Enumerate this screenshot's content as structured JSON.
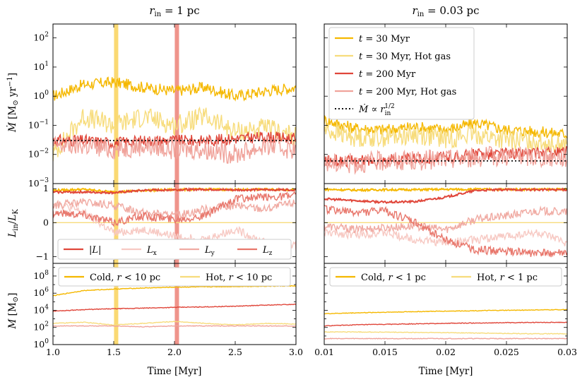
{
  "colors": {
    "cold_30": "#f5b800",
    "hot_30": "#f7dc7c",
    "cold_200": "#e0463a",
    "hot_200": "#f0a39b",
    "Lx": "#f7c9c3",
    "Ly": "#f0aaa2",
    "Lz": "#e8776c",
    "mdot_ref": "#111111",
    "vline_30": "#f9d25a",
    "vline_200": "#ec8177"
  },
  "chart_data": [
    {
      "panel": "top-left",
      "type": "line",
      "title": "r_in = 1 pc",
      "ylabel": "Ṁ [M⊙ yr⁻¹]",
      "yscale": "log",
      "xlim": [
        1.0,
        3.0
      ],
      "ylim": [
        0.001,
        300
      ],
      "x": [
        1.0,
        1.25,
        1.5,
        1.75,
        2.0,
        2.25,
        2.5,
        2.75,
        3.0
      ],
      "series": [
        {
          "name": "t = 30 Myr",
          "values": [
            1.0,
            2.5,
            3.0,
            2.0,
            1.5,
            2.0,
            1.0,
            1.5,
            2.0
          ]
        },
        {
          "name": "t = 30 Myr, Hot gas",
          "values": [
            0.01,
            0.2,
            0.1,
            0.2,
            0.1,
            0.2,
            0.06,
            0.08,
            0.04
          ]
        },
        {
          "name": "t = 200 Myr",
          "values": [
            0.03,
            0.03,
            0.025,
            0.03,
            0.03,
            0.03,
            0.035,
            0.04,
            0.035
          ]
        },
        {
          "name": "t = 200 Myr, Hot gas",
          "values": [
            0.02,
            0.02,
            0.015,
            0.02,
            0.015,
            0.015,
            0.01,
            0.02,
            0.015
          ]
        },
        {
          "name": "Ṁ ∝ r_in^(1/2)",
          "values": [
            0.03,
            0.03,
            0.03,
            0.03,
            0.03,
            0.03,
            0.03,
            0.03,
            0.03
          ]
        }
      ],
      "vlines": [
        1.52,
        2.02
      ]
    },
    {
      "panel": "top-right",
      "type": "line",
      "title": "r_in = 0.03 pc",
      "yscale": "log",
      "xlim": [
        0.01,
        0.03
      ],
      "ylim": [
        0.001,
        300
      ],
      "x": [
        0.01,
        0.0125,
        0.015,
        0.0175,
        0.02,
        0.0225,
        0.025,
        0.0275,
        0.03
      ],
      "series": [
        {
          "name": "t = 30 Myr",
          "values": [
            0.15,
            0.08,
            0.07,
            0.09,
            0.07,
            0.12,
            0.07,
            0.06,
            0.05
          ]
        },
        {
          "name": "t = 30 Myr, Hot gas",
          "values": [
            0.07,
            0.04,
            0.04,
            0.05,
            0.035,
            0.05,
            0.03,
            0.03,
            0.02
          ]
        },
        {
          "name": "t = 200 Myr",
          "values": [
            0.006,
            0.006,
            0.0065,
            0.007,
            0.008,
            0.01,
            0.011,
            0.011,
            0.012
          ]
        },
        {
          "name": "t = 200 Myr, Hot gas",
          "values": [
            0.005,
            0.005,
            0.006,
            0.006,
            0.007,
            0.008,
            0.009,
            0.008,
            0.008
          ]
        },
        {
          "name": "Ṁ ∝ r_in^(1/2)",
          "values": [
            0.006,
            0.006,
            0.006,
            0.006,
            0.006,
            0.006,
            0.006,
            0.006,
            0.006
          ]
        }
      ],
      "legend": {
        "placement": "top-left",
        "entries": [
          "t = 30 Myr",
          "t = 30 Myr, Hot gas",
          "t = 200 Myr",
          "t = 200 Myr, Hot gas",
          "Ṁ ∝ r_in^(1/2)"
        ]
      }
    },
    {
      "panel": "middle-left",
      "type": "line",
      "ylabel": "L_in / L_K",
      "xlim": [
        1.0,
        3.0
      ],
      "ylim": [
        -1.2,
        1.15
      ],
      "x": [
        1.0,
        1.25,
        1.5,
        1.75,
        2.0,
        2.25,
        2.5,
        2.75,
        3.0
      ],
      "series": [
        {
          "name": "|L|",
          "group": "t30",
          "values": [
            0.95,
            0.98,
            0.9,
            0.95,
            0.97,
            0.98,
            0.97,
            0.98,
            0.97
          ]
        },
        {
          "name": "L_x",
          "group": "t30",
          "values": [
            0.0,
            0.0,
            0.0,
            0.0,
            0.0,
            0.0,
            0.0,
            0.0,
            0.0
          ]
        },
        {
          "name": "|L|",
          "group": "t200",
          "values": [
            0.9,
            0.9,
            0.88,
            0.95,
            0.97,
            0.98,
            0.96,
            0.97,
            0.97
          ]
        },
        {
          "name": "L_x",
          "group": "t200",
          "values": [
            0.6,
            0.3,
            -0.3,
            -0.2,
            -0.4,
            -0.5,
            -0.2,
            -0.6,
            -0.7
          ]
        },
        {
          "name": "L_y",
          "group": "t200",
          "values": [
            0.5,
            0.6,
            0.5,
            0.3,
            0.2,
            0.4,
            0.5,
            0.4,
            0.6
          ]
        },
        {
          "name": "L_z",
          "group": "t200",
          "values": [
            0.3,
            0.25,
            0.0,
            0.2,
            0.1,
            0.2,
            0.7,
            0.75,
            0.8
          ]
        }
      ],
      "legend": {
        "placement": "lower-center",
        "entries": [
          "|L|",
          "L_x",
          "L_y",
          "L_z"
        ]
      },
      "vlines": [
        1.52,
        2.02
      ]
    },
    {
      "panel": "middle-right",
      "type": "line",
      "xlim": [
        0.01,
        0.03
      ],
      "ylim": [
        -1.2,
        1.15
      ],
      "x": [
        0.01,
        0.0125,
        0.015,
        0.0175,
        0.02,
        0.0225,
        0.025,
        0.0275,
        0.03
      ],
      "series": [
        {
          "name": "|L|",
          "group": "t30",
          "values": [
            0.98,
            0.96,
            0.97,
            0.97,
            0.98,
            0.98,
            0.98,
            0.98,
            0.98
          ]
        },
        {
          "name": "L_x",
          "group": "t30",
          "values": [
            0.0,
            0.0,
            0.0,
            0.0,
            0.0,
            0.0,
            0.0,
            0.0,
            0.0
          ]
        },
        {
          "name": "|L|",
          "group": "t200",
          "values": [
            0.7,
            0.65,
            0.6,
            0.62,
            0.75,
            0.95,
            0.97,
            0.97,
            0.97
          ]
        },
        {
          "name": "L_x",
          "group": "t200",
          "values": [
            -0.3,
            -0.35,
            -0.3,
            -0.5,
            -0.6,
            -0.5,
            -0.4,
            -0.3,
            -0.6
          ]
        },
        {
          "name": "L_y",
          "group": "t200",
          "values": [
            -0.1,
            -0.2,
            -0.15,
            -0.1,
            -0.2,
            0.1,
            0.2,
            0.35,
            0.3
          ]
        },
        {
          "name": "L_z",
          "group": "t200",
          "values": [
            0.4,
            0.3,
            0.35,
            0.0,
            -0.5,
            -0.8,
            -0.85,
            -0.9,
            -0.9
          ]
        }
      ]
    },
    {
      "panel": "bottom-left",
      "type": "line",
      "ylabel": "M [M⊙]",
      "xlabel": "Time [Myr]",
      "yscale": "log",
      "xlim": [
        1.0,
        3.0
      ],
      "ylim": [
        1,
        3000000000
      ],
      "x": [
        1.0,
        1.25,
        1.5,
        1.75,
        2.0,
        2.25,
        2.5,
        2.75,
        3.0
      ],
      "series": [
        {
          "name": "Cold, r < 10 pc",
          "group": "t30",
          "values": [
            500000,
            2000000,
            3000000,
            4000000,
            5000000,
            5500000,
            6000000,
            6500000,
            7000000
          ]
        },
        {
          "name": "Hot, r < 10 pc",
          "group": "t30",
          "values": [
            300,
            400,
            200,
            300,
            500,
            300,
            200,
            300,
            250
          ]
        },
        {
          "name": "Cold, r < 10 pc",
          "group": "t200",
          "values": [
            8000,
            12000,
            15000,
            18000,
            22000,
            25000,
            30000,
            40000,
            50000
          ]
        },
        {
          "name": "Hot, r < 10 pc",
          "group": "t200",
          "values": [
            150,
            150,
            150,
            120,
            150,
            150,
            150,
            150,
            150
          ]
        }
      ],
      "legend": {
        "placement": "top",
        "entries": [
          "Cold, r < 10 pc",
          "Hot, r < 10 pc"
        ]
      },
      "vlines": [
        1.52,
        2.02
      ]
    },
    {
      "panel": "bottom-right",
      "type": "line",
      "xlabel": "Time [Myr]",
      "yscale": "log",
      "xlim": [
        0.01,
        0.03
      ],
      "ylim": [
        1,
        3000000000
      ],
      "x": [
        0.01,
        0.0125,
        0.015,
        0.0175,
        0.02,
        0.0225,
        0.025,
        0.0275,
        0.03
      ],
      "series": [
        {
          "name": "Cold, r < 1 pc",
          "group": "t30",
          "values": [
            4000,
            5000,
            6000,
            7000,
            8000,
            9000,
            10000,
            11000,
            12000
          ]
        },
        {
          "name": "Hot, r < 1 pc",
          "group": "t30",
          "values": [
            30,
            30,
            28,
            26,
            25,
            22,
            20,
            18,
            18
          ]
        },
        {
          "name": "Cold, r < 1 pc",
          "group": "t200",
          "values": [
            150,
            200,
            230,
            260,
            300,
            330,
            360,
            380,
            400
          ]
        },
        {
          "name": "Hot, r < 1 pc",
          "group": "t200",
          "values": [
            5,
            5,
            5,
            5,
            5,
            5,
            5,
            5,
            5
          ]
        }
      ],
      "legend": {
        "placement": "top",
        "entries": [
          "Cold, r < 1 pc",
          "Hot, r < 1 pc"
        ]
      }
    }
  ],
  "ticks": {
    "x_left": [
      "1.0",
      "1.5",
      "2.0",
      "2.5",
      "3.0"
    ],
    "x_right": [
      "0.01",
      "0.015",
      "0.02",
      "0.025",
      "0.03"
    ],
    "y_top": [
      "10^-3",
      "10^-2",
      "10^-1",
      "10^0",
      "10^1",
      "10^2"
    ],
    "y_mid": [
      "−1",
      "0",
      "1"
    ],
    "y_bot": [
      "10^0",
      "10^2",
      "10^4",
      "10^6",
      "10^8"
    ]
  }
}
